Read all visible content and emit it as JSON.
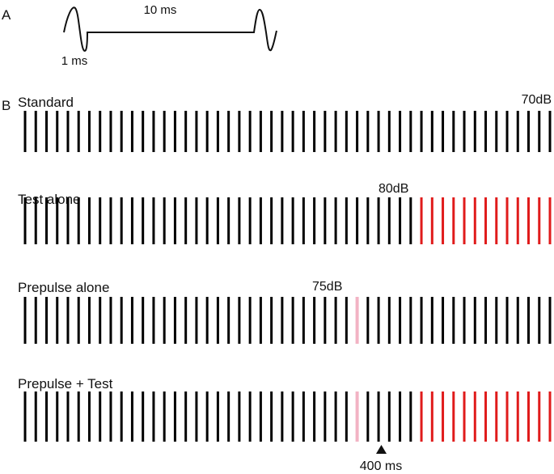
{
  "panel_a": {
    "letter": "A",
    "label_top": "10 ms",
    "label_bottom": "1 ms"
  },
  "panel_b": {
    "letter": "B",
    "colors": {
      "normal": "#000000",
      "test": "#e01b1b",
      "prepulse": "#f2b3c4"
    },
    "rows": [
      {
        "key": "standard",
        "label": "Standard",
        "level_label": "70dB",
        "pulses": 50,
        "prepulse_at": [],
        "test_from": null
      },
      {
        "key": "test-alone",
        "label": "Test alone",
        "level_label": "80dB",
        "pulses": 50,
        "prepulse_at": [],
        "test_from": 37
      },
      {
        "key": "prepulse-alone",
        "label": "Prepulse alone",
        "level_label": "75dB",
        "pulses": 50,
        "prepulse_at": [
          31
        ],
        "test_from": null
      },
      {
        "key": "prepulse-test",
        "label": "Prepulse + Test",
        "level_label": "",
        "pulses": 50,
        "prepulse_at": [
          31
        ],
        "test_from": 37
      }
    ],
    "marker_label": "400 ms"
  }
}
